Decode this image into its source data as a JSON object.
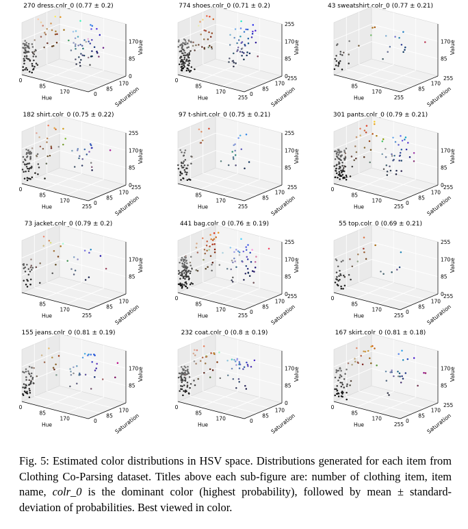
{
  "chart_data": [
    {
      "type": "scatter",
      "title": "270 dress.colr_0 (0.77 ± 0.2)",
      "count": 270,
      "item": "dress",
      "mean": 0.77,
      "std": 0.2,
      "xlabel": "Hue",
      "ylabel": "Saturation",
      "zlabel": "Value",
      "x_ticks": [
        "0",
        "85",
        "170"
      ],
      "y_ticks": [
        "0",
        "85",
        "170"
      ],
      "z_ticks": [
        "0",
        "85",
        "170"
      ],
      "xlim": [
        0,
        255
      ],
      "ylim": [
        0,
        255
      ],
      "zlim": [
        0,
        255
      ]
    },
    {
      "type": "scatter",
      "title": "774 shoes.colr_0 (0.71 ± 0.2)",
      "count": 774,
      "item": "shoes",
      "mean": 0.71,
      "std": 0.2,
      "xlabel": "Hue",
      "ylabel": "Saturation",
      "zlabel": "Value",
      "x_ticks": [
        "0",
        "85",
        "170",
        "255"
      ],
      "y_ticks": [
        "0",
        "85",
        "170",
        "255"
      ],
      "z_ticks": [
        "0",
        "85",
        "170",
        "255"
      ],
      "xlim": [
        0,
        255
      ],
      "ylim": [
        0,
        255
      ],
      "zlim": [
        0,
        255
      ]
    },
    {
      "type": "scatter",
      "title": "43 sweatshirt.colr_0 (0.77 ± 0.21)",
      "count": 43,
      "item": "sweatshirt",
      "mean": 0.77,
      "std": 0.21,
      "xlabel": "Hue",
      "ylabel": "Saturation",
      "zlabel": "Value",
      "x_ticks": [
        "85",
        "170",
        "255"
      ],
      "y_ticks": [
        "85",
        "170",
        "255"
      ],
      "z_ticks": [
        "85",
        "170"
      ],
      "xlim": [
        0,
        255
      ],
      "ylim": [
        0,
        255
      ],
      "zlim": [
        0,
        255
      ]
    },
    {
      "type": "scatter",
      "title": "182 shirt.colr_0 (0.75 ± 0.22)",
      "count": 182,
      "item": "shirt",
      "mean": 0.75,
      "std": 0.22,
      "xlabel": "Hue",
      "ylabel": "Saturation",
      "zlabel": "Value",
      "x_ticks": [
        "0",
        "85",
        "170",
        "255"
      ],
      "y_ticks": [
        "0",
        "85",
        "170",
        "255"
      ],
      "z_ticks": [
        "0",
        "85",
        "170",
        "255"
      ],
      "xlim": [
        0,
        255
      ],
      "ylim": [
        0,
        255
      ],
      "zlim": [
        0,
        255
      ]
    },
    {
      "type": "scatter",
      "title": "97 t-shirt.colr_0 (0.75 ± 0.21)",
      "count": 97,
      "item": "t-shirt",
      "mean": 0.75,
      "std": 0.21,
      "xlabel": "Hue",
      "ylabel": "Saturation",
      "zlabel": "Value",
      "x_ticks": [
        "85",
        "170",
        "255"
      ],
      "y_ticks": [
        "85",
        "170",
        "255"
      ],
      "z_ticks": [
        "85",
        "170",
        "255"
      ],
      "xlim": [
        0,
        255
      ],
      "ylim": [
        0,
        255
      ],
      "zlim": [
        0,
        255
      ]
    },
    {
      "type": "scatter",
      "title": "301 pants.colr_0 (0.79 ± 0.21)",
      "count": 301,
      "item": "pants",
      "mean": 0.79,
      "std": 0.21,
      "xlabel": "Hue",
      "ylabel": "Saturation",
      "zlabel": "Value",
      "x_ticks": [
        "0",
        "85",
        "170",
        "255"
      ],
      "y_ticks": [
        "0",
        "85",
        "170",
        "255"
      ],
      "z_ticks": [
        "0",
        "85",
        "170"
      ],
      "xlim": [
        0,
        255
      ],
      "ylim": [
        0,
        255
      ],
      "zlim": [
        0,
        255
      ]
    },
    {
      "type": "scatter",
      "title": "73 jacket.colr_0 (0.79 ± 0.2)",
      "count": 73,
      "item": "jacket",
      "mean": 0.79,
      "std": 0.2,
      "xlabel": "Hue",
      "ylabel": "Saturation",
      "zlabel": "Value",
      "x_ticks": [
        "85",
        "170",
        "255"
      ],
      "y_ticks": [
        "85",
        "170"
      ],
      "z_ticks": [
        "85",
        "170"
      ],
      "xlim": [
        0,
        255
      ],
      "ylim": [
        0,
        255
      ],
      "zlim": [
        0,
        255
      ]
    },
    {
      "type": "scatter",
      "title": "441 bag.colr_0 (0.76 ± 0.19)",
      "count": 441,
      "item": "bag",
      "mean": 0.76,
      "std": 0.19,
      "xlabel": "Hue",
      "ylabel": "Saturation",
      "zlabel": "Value",
      "x_ticks": [
        "0",
        "85",
        "170",
        "255"
      ],
      "y_ticks": [
        "0",
        "85",
        "170",
        "255"
      ],
      "z_ticks": [
        "0",
        "85",
        "170",
        "255"
      ],
      "xlim": [
        0,
        255
      ],
      "ylim": [
        0,
        255
      ],
      "zlim": [
        0,
        255
      ]
    },
    {
      "type": "scatter",
      "title": "55 top.colr_0 (0.69 ± 0.21)",
      "count": 55,
      "item": "top",
      "mean": 0.69,
      "std": 0.21,
      "xlabel": "Hue",
      "ylabel": "Saturation",
      "zlabel": "Value",
      "x_ticks": [
        "0",
        "85",
        "170",
        "255"
      ],
      "y_ticks": [
        "0",
        "85",
        "170",
        "255"
      ],
      "z_ticks": [
        "0",
        "85",
        "170",
        "255"
      ],
      "xlim": [
        0,
        255
      ],
      "ylim": [
        0,
        255
      ],
      "zlim": [
        0,
        255
      ]
    },
    {
      "type": "scatter",
      "title": "155 jeans.colr_0 (0.81 ± 0.19)",
      "count": 155,
      "item": "jeans",
      "mean": 0.81,
      "std": 0.19,
      "xlabel": "Hue",
      "ylabel": "Saturation",
      "zlabel": "Value",
      "x_ticks": [
        "0",
        "85",
        "170"
      ],
      "y_ticks": [
        "0",
        "85",
        "170"
      ],
      "z_ticks": [
        "85",
        "170"
      ],
      "xlim": [
        0,
        255
      ],
      "ylim": [
        0,
        255
      ],
      "zlim": [
        0,
        255
      ]
    },
    {
      "type": "scatter",
      "title": "232 coat.colr_0 (0.8 ± 0.19)",
      "count": 232,
      "item": "coat",
      "mean": 0.8,
      "std": 0.19,
      "xlabel": "Hue",
      "ylabel": "Saturation",
      "zlabel": "Value",
      "x_ticks": [
        "0",
        "85",
        "170"
      ],
      "y_ticks": [
        "0",
        "85",
        "170"
      ],
      "z_ticks": [
        "0",
        "85",
        "170"
      ],
      "xlim": [
        0,
        255
      ],
      "ylim": [
        0,
        255
      ],
      "zlim": [
        0,
        255
      ]
    },
    {
      "type": "scatter",
      "title": "167 skirt.colr_0 (0.81 ± 0.18)",
      "count": 167,
      "item": "skirt",
      "mean": 0.81,
      "std": 0.18,
      "xlabel": "Hue",
      "ylabel": "Saturation",
      "zlabel": "Value",
      "x_ticks": [
        "0",
        "85",
        "170",
        "255"
      ],
      "y_ticks": [
        "0",
        "85",
        "170",
        "255"
      ],
      "z_ticks": [
        "85",
        "170"
      ],
      "xlim": [
        0,
        255
      ],
      "ylim": [
        0,
        255
      ],
      "zlim": [
        0,
        255
      ]
    }
  ],
  "caption": {
    "label": "Fig. 5:",
    "text_1": "Estimated color distributions in HSV space. Distributions generated for each item from Clothing Co-Parsing dataset. Titles above each sub-figure are: number of clothing item, item name,",
    "colr_term": "colr_0",
    "text_2": "is the dominant color (highest probability), followed by mean ± standard-deviation of probabilities. Best viewed in color."
  }
}
